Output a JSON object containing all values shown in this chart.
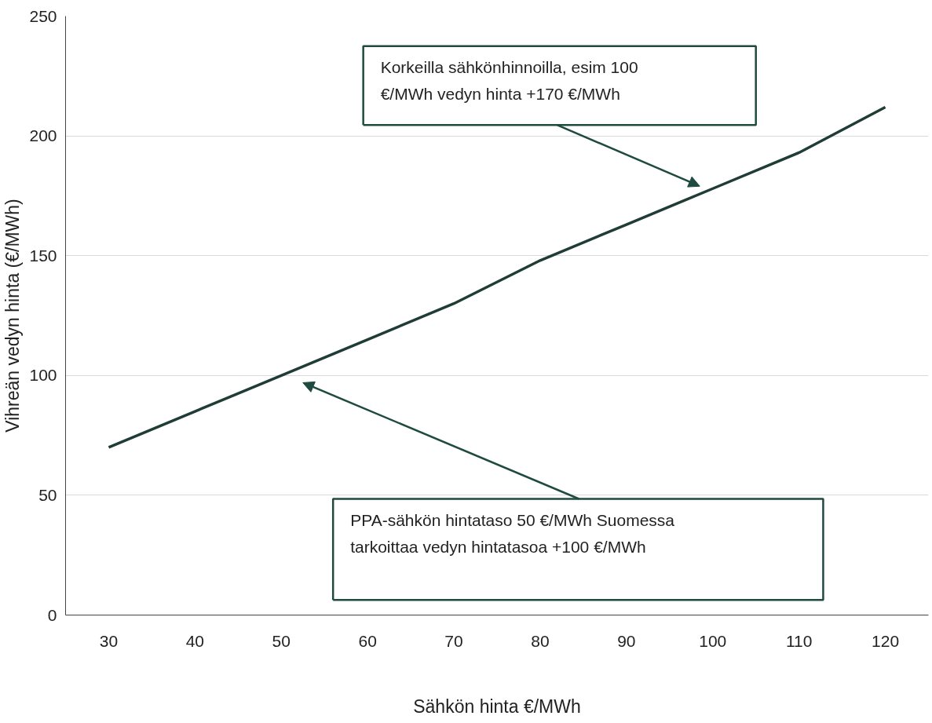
{
  "chart_data": {
    "type": "line",
    "xlabel": "Sähkön hinta €/MWh",
    "ylabel": "Vihreän vedyn hinta (€/MWh)",
    "categories": [
      "30",
      "40",
      "50",
      "60",
      "70",
      "80",
      "90",
      "100",
      "110",
      "120"
    ],
    "series": [
      {
        "color": "#1f3d36",
        "values": [
          70,
          85,
          100,
          115,
          130,
          148,
          163,
          178,
          193,
          212
        ]
      }
    ],
    "ylim": [
      0,
      250
    ],
    "yticks": [
      0,
      50,
      100,
      150,
      200,
      250
    ],
    "grid": "y",
    "marker": "none",
    "line_style": "solid",
    "annotations": [
      "Korkeilla sähkönhinnoilla, esim 100 €/MWh vedyn hinta +170 €/MWh",
      "PPA-sähkön hintataso 50 €/MWh Suomessa tarkoittaa vedyn hintatasoa +100 €/MWh"
    ]
  }
}
